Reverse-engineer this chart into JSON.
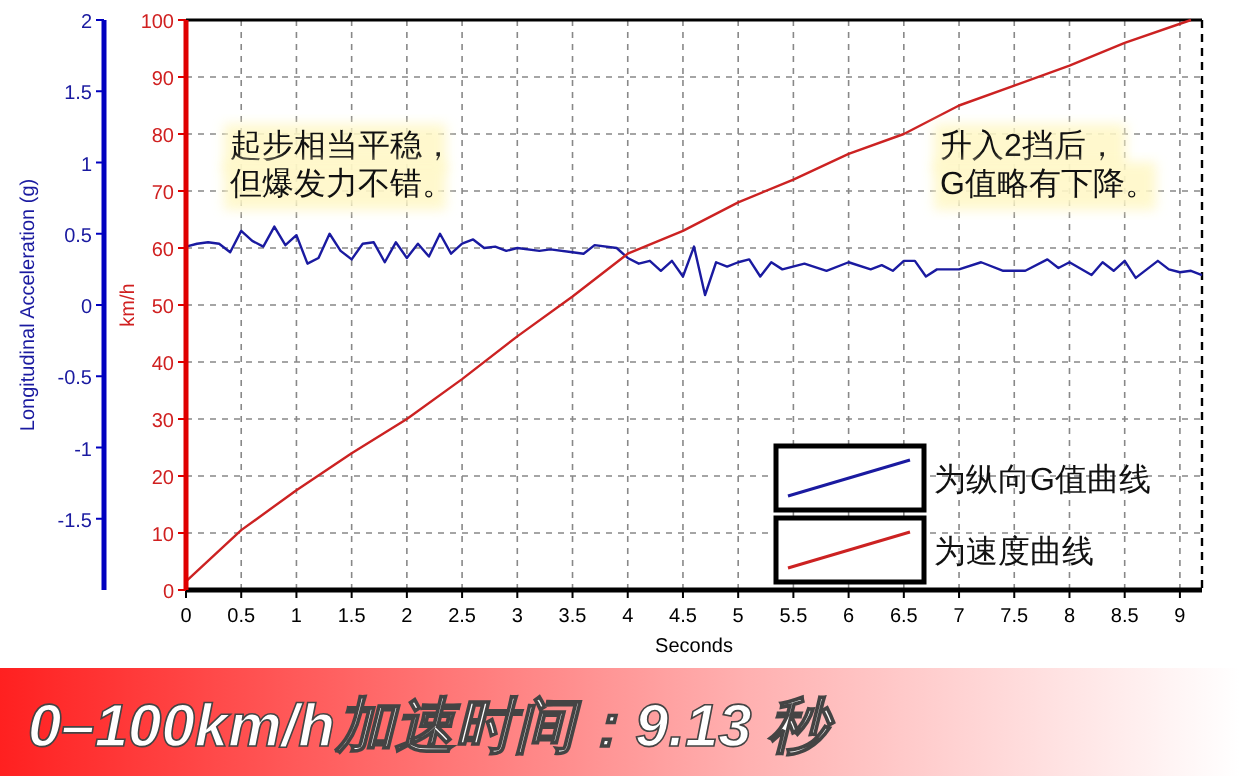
{
  "chart_data": {
    "type": "line",
    "title": "0–100km/h加速时间：9.13 秒",
    "xlabel": "Seconds",
    "ylabel": "km/h",
    "y2label": "Longitudinal Acceleration (g)",
    "xlim": [
      0,
      9.2
    ],
    "xticks": [
      0,
      0.5,
      1,
      1.5,
      2,
      2.5,
      3,
      3.5,
      4,
      4.5,
      5,
      5.5,
      6,
      6.5,
      7,
      7.5,
      8,
      8.5,
      9
    ],
    "ylim": [
      0,
      100
    ],
    "yticks": [
      0,
      10,
      20,
      30,
      40,
      50,
      60,
      70,
      80,
      90,
      100
    ],
    "y2lim": [
      -2,
      2
    ],
    "y2ticks": [
      -1.5,
      -1,
      -0.5,
      0,
      0.5,
      1,
      1.5,
      2
    ],
    "grid": true,
    "legend": "bottom right",
    "marker": "none",
    "line_style": "solid",
    "annotations": [
      "起步相当平稳，",
      "但爆发力不错。",
      "升入2挡后，",
      "G值略有下降。"
    ],
    "series": [
      {
        "name": "为纵向G值曲线",
        "color": "#1a1aa0",
        "axis": "y2",
        "x": [
          0,
          0.1,
          0.2,
          0.3,
          0.4,
          0.5,
          0.6,
          0.7,
          0.8,
          0.9,
          1.0,
          1.1,
          1.2,
          1.3,
          1.4,
          1.5,
          1.6,
          1.7,
          1.8,
          1.9,
          2.0,
          2.1,
          2.2,
          2.3,
          2.4,
          2.5,
          2.6,
          2.7,
          2.8,
          2.9,
          3.0,
          3.2,
          3.3,
          3.5,
          3.6,
          3.7,
          3.9,
          4.0,
          4.1,
          4.2,
          4.3,
          4.4,
          4.5,
          4.6,
          4.7,
          4.8,
          4.9,
          5.0,
          5.1,
          5.2,
          5.3,
          5.4,
          5.6,
          5.8,
          6.0,
          6.2,
          6.3,
          6.4,
          6.5,
          6.6,
          6.7,
          6.8,
          7.0,
          7.2,
          7.4,
          7.6,
          7.8,
          7.9,
          8.0,
          8.2,
          8.3,
          8.4,
          8.5,
          8.6,
          8.8,
          8.9,
          9.0,
          9.1,
          9.2
        ],
        "values": [
          0.41,
          0.43,
          0.44,
          0.43,
          0.37,
          0.52,
          0.45,
          0.41,
          0.55,
          0.42,
          0.49,
          0.29,
          0.33,
          0.5,
          0.38,
          0.32,
          0.43,
          0.44,
          0.3,
          0.44,
          0.33,
          0.43,
          0.34,
          0.5,
          0.36,
          0.43,
          0.46,
          0.4,
          0.41,
          0.38,
          0.4,
          0.38,
          0.39,
          0.37,
          0.36,
          0.42,
          0.4,
          0.33,
          0.29,
          0.31,
          0.24,
          0.31,
          0.2,
          0.41,
          0.07,
          0.3,
          0.27,
          0.3,
          0.32,
          0.2,
          0.3,
          0.25,
          0.29,
          0.24,
          0.3,
          0.25,
          0.28,
          0.24,
          0.31,
          0.31,
          0.2,
          0.25,
          0.25,
          0.3,
          0.24,
          0.24,
          0.32,
          0.26,
          0.3,
          0.21,
          0.3,
          0.24,
          0.31,
          0.19,
          0.31,
          0.25,
          0.23,
          0.24,
          0.21
        ]
      },
      {
        "name": "为速度曲线",
        "color": "#cc2222",
        "x": [
          0,
          0.5,
          1,
          1.5,
          2,
          2.5,
          3,
          3.5,
          4,
          4.5,
          5,
          5.5,
          6,
          6.5,
          7,
          7.5,
          8,
          8.5,
          9.1
        ],
        "values": [
          1.5,
          10.5,
          17.5,
          24,
          30,
          37,
          44.5,
          51.5,
          59,
          63,
          68,
          72,
          76.5,
          80,
          85,
          88.5,
          92,
          96,
          100
        ]
      }
    ]
  }
}
